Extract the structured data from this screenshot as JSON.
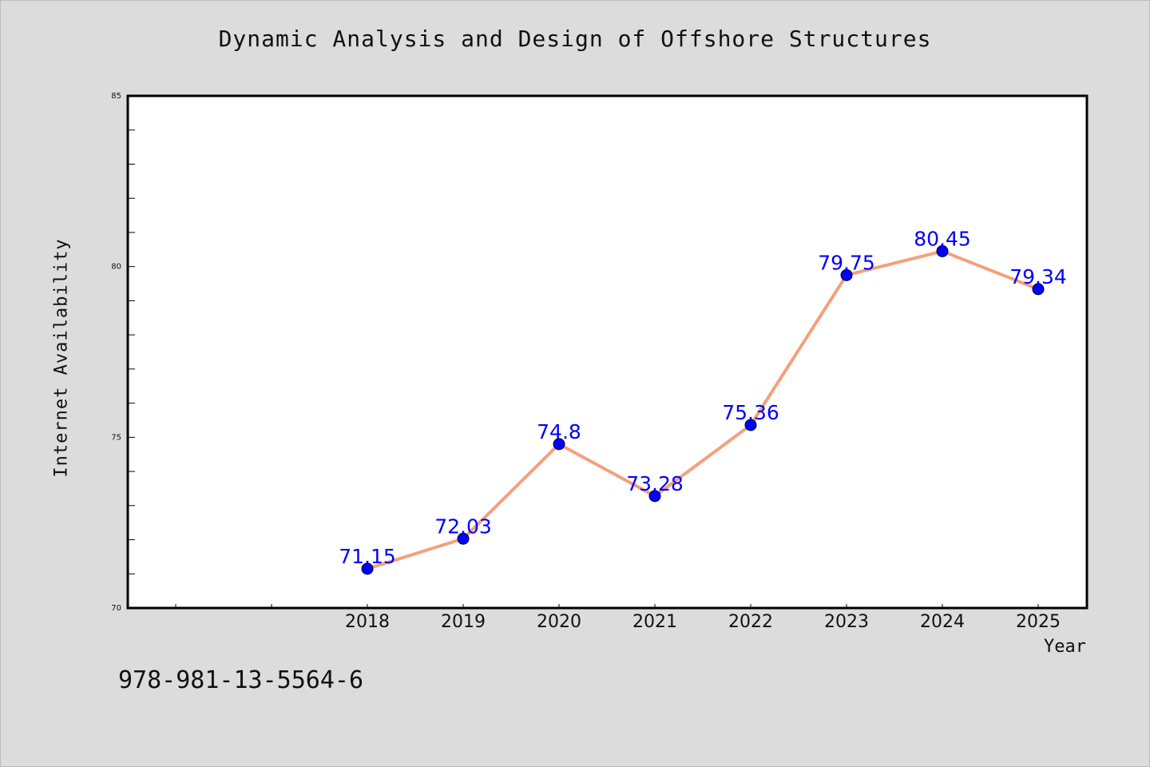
{
  "chart_data": {
    "type": "line",
    "title": "Dynamic Analysis and Design of Offshore Structures",
    "xlabel": "Year",
    "ylabel": "Internet Availability",
    "annotation": "978-981-13-5564-6",
    "categories": [
      "2018",
      "2019",
      "2020",
      "2021",
      "2022",
      "2023",
      "2024",
      "2025"
    ],
    "series": [
      {
        "values": [
          71.15,
          72.03,
          74.8,
          73.28,
          75.36,
          79.75,
          80.45,
          79.34
        ]
      }
    ],
    "data_labels": [
      "71.15",
      "72.03",
      "74.8",
      "73.28",
      "75.36",
      "79.75",
      "80.45",
      "79.34"
    ],
    "ylim": [
      70,
      85
    ],
    "yticks": [
      "70",
      "75",
      "80",
      "85"
    ],
    "grid": false,
    "colors": {
      "line": "#f4a07c",
      "marker_fill": "#0000ff",
      "marker_edge": "#000033",
      "data_label": "#0000ff",
      "plot_background": "#ffffff",
      "page_background": "#dcdcdc"
    }
  }
}
